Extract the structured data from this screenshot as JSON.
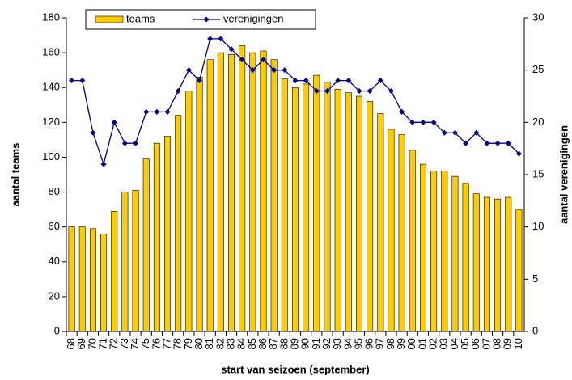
{
  "chart_data": {
    "type": "bar_line",
    "x_label": "start van seizoen (september)",
    "y_label": "aantal teams",
    "y2_label": "aantal verenigingen",
    "categories": [
      "68",
      "69",
      "70",
      "71",
      "72",
      "73",
      "74",
      "75",
      "76",
      "77",
      "78",
      "79",
      "80",
      "81",
      "82",
      "83",
      "84",
      "85",
      "86",
      "87",
      "88",
      "89",
      "90",
      "91",
      "92",
      "93",
      "94",
      "95",
      "96",
      "97",
      "98",
      "99",
      "00",
      "01",
      "02",
      "03",
      "04",
      "05",
      "06",
      "07",
      "08",
      "09",
      "10"
    ],
    "series": [
      {
        "name": "teams",
        "type": "bar",
        "color": "#ffcc00",
        "values": [
          60,
          60,
          59,
          56,
          69,
          80,
          81,
          99,
          108,
          112,
          124,
          138,
          146,
          156,
          160,
          159,
          164,
          160,
          161,
          156,
          145,
          140,
          142,
          147,
          143,
          139,
          137,
          135,
          132,
          125,
          116,
          113,
          104,
          96,
          92,
          92,
          89,
          85,
          79,
          77,
          76,
          77,
          70
        ]
      },
      {
        "name": "verenigingen",
        "type": "line",
        "axis": "y2",
        "color": "#000080",
        "values": [
          24,
          24,
          19,
          16,
          20,
          18,
          18,
          21,
          21,
          21,
          23,
          25,
          24,
          28,
          28,
          27,
          26,
          25,
          26,
          25,
          25,
          24,
          24,
          23,
          23,
          24,
          24,
          23,
          23,
          24,
          23,
          21,
          20,
          20,
          20,
          19,
          19,
          18,
          19,
          18,
          18,
          18,
          17
        ]
      }
    ],
    "ylim": [
      0,
      180
    ],
    "yticks": [
      0,
      20,
      40,
      60,
      80,
      100,
      120,
      140,
      160,
      180
    ],
    "y2lim": [
      0,
      30
    ],
    "y2ticks": [
      0,
      5,
      10,
      15,
      20,
      25,
      30
    ],
    "legend": "top"
  }
}
